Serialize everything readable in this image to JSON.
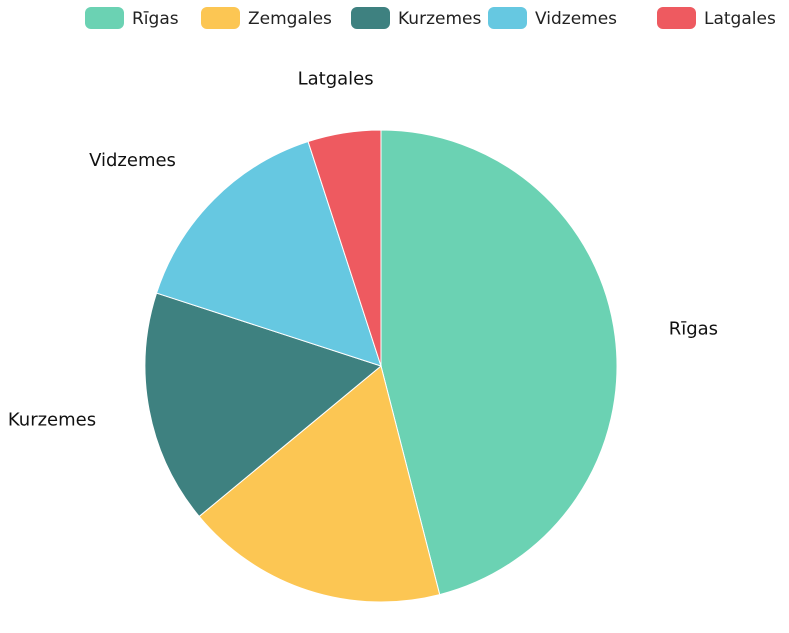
{
  "chart_data": {
    "type": "pie",
    "title": "",
    "legend_position": "top",
    "slices": [
      {
        "label": "Rīgas",
        "value": 46,
        "color": "#6bd2b3"
      },
      {
        "label": "Zemgales",
        "value": 18,
        "color": "#fcc653"
      },
      {
        "label": "Kurzemes",
        "value": 16,
        "color": "#3e8180"
      },
      {
        "label": "Vidzemes",
        "value": 15,
        "color": "#66c8e1"
      },
      {
        "label": "Latgales",
        "value": 5,
        "color": "#ee5a60"
      }
    ]
  }
}
